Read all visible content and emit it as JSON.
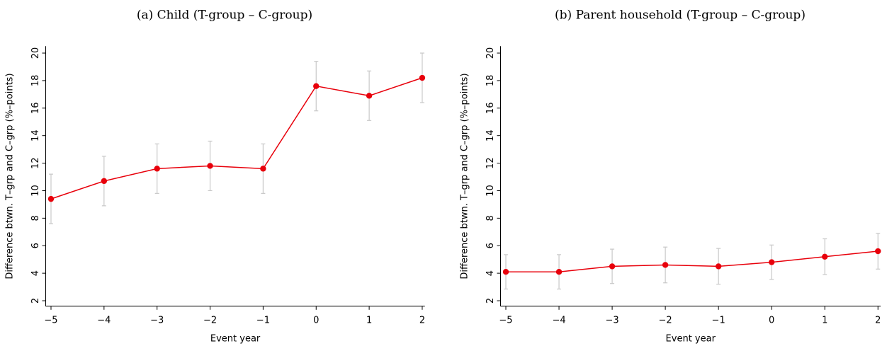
{
  "chart_data": [
    {
      "type": "line",
      "title": "(a) Child (T-group – C-group)",
      "xlabel": "Event year",
      "ylabel": "Difference btwn. T–grp and C–grp (%–points)",
      "x": [
        -5,
        -4,
        -3,
        -2,
        -1,
        0,
        1,
        2
      ],
      "series": [
        {
          "color": "#e8000b",
          "values": [
            9.4,
            10.7,
            11.6,
            11.8,
            11.6,
            17.6,
            16.9,
            18.2
          ],
          "errors": [
            1.8,
            1.8,
            1.8,
            1.8,
            1.8,
            1.8,
            1.8,
            1.8
          ]
        }
      ],
      "error_color": "#c8c8c8",
      "xlim": [
        -5.1,
        2.05
      ],
      "ylim": [
        1.6,
        20.5
      ],
      "xticks": [
        {
          "value": -5,
          "label": "−5"
        },
        {
          "value": -4,
          "label": "−4"
        },
        {
          "value": -3,
          "label": "−3"
        },
        {
          "value": -2,
          "label": "−2"
        },
        {
          "value": -1,
          "label": "−1"
        },
        0,
        1,
        2
      ],
      "yticks": [
        2,
        4,
        6,
        8,
        10,
        12,
        14,
        16,
        18,
        20
      ]
    },
    {
      "type": "line",
      "title": "(b) Parent household (T-group – C-group)",
      "xlabel": "Event year",
      "ylabel": "Difference btwn. T–grp and C–grp (%–points)",
      "x": [
        -5,
        -4,
        -3,
        -2,
        -1,
        0,
        1,
        2
      ],
      "series": [
        {
          "color": "#e8000b",
          "values": [
            4.1,
            4.1,
            4.5,
            4.6,
            4.5,
            4.8,
            5.2,
            5.6
          ],
          "errors": [
            1.25,
            1.25,
            1.25,
            1.3,
            1.3,
            1.25,
            1.3,
            1.3
          ]
        }
      ],
      "error_color": "#c8c8c8",
      "xlim": [
        -5.1,
        2.05
      ],
      "ylim": [
        1.6,
        20.5
      ],
      "xticks": [
        {
          "value": -5,
          "label": "−5"
        },
        {
          "value": -4,
          "label": "−4"
        },
        {
          "value": -3,
          "label": "−3"
        },
        {
          "value": -2,
          "label": "−2"
        },
        {
          "value": -1,
          "label": "−1"
        },
        0,
        1,
        2
      ],
      "yticks": [
        2,
        4,
        6,
        8,
        10,
        12,
        14,
        16,
        18,
        20
      ]
    }
  ]
}
